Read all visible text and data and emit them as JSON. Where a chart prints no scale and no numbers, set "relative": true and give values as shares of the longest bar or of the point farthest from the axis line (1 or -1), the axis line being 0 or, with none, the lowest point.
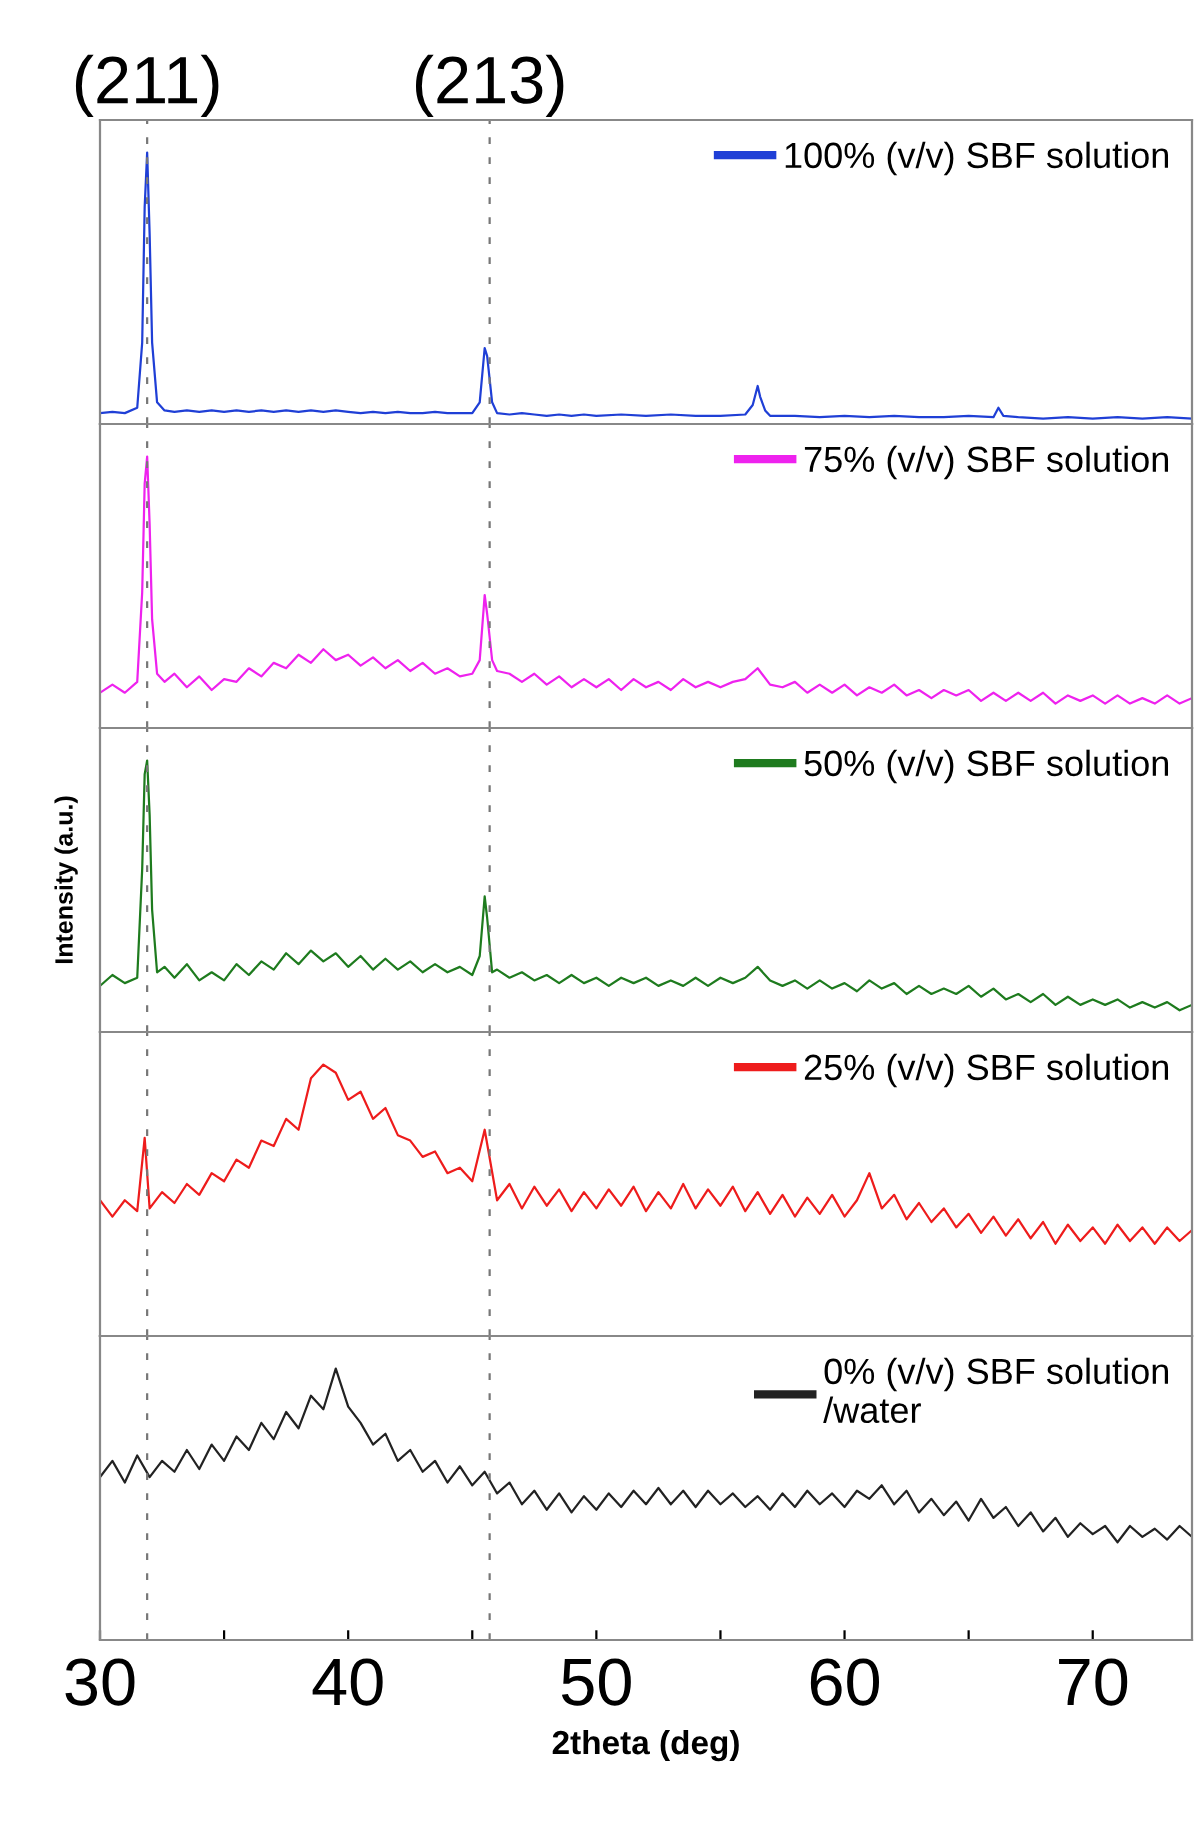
{
  "chart_data": [
    {
      "type": "line",
      "relative": true,
      "xlim": [
        30,
        74
      ],
      "tick_labels": false,
      "legend": "top right",
      "annotations": [
        "(211)",
        "(213)"
      ],
      "ref_lines": [
        {
          "axis": "x",
          "value": 31.9,
          "color": "#777777",
          "line_style": "dashed"
        },
        {
          "axis": "x",
          "value": 45.7,
          "color": "#777777",
          "line_style": "dashed"
        }
      ],
      "x": [
        30,
        30.5,
        31,
        31.5,
        31.7,
        31.8,
        31.9,
        32,
        32.1,
        32.3,
        32.6,
        33,
        33.5,
        34,
        34.5,
        35,
        35.5,
        36,
        36.5,
        37,
        37.5,
        38,
        38.5,
        39,
        39.5,
        40,
        40.5,
        41,
        41.5,
        42,
        42.5,
        43,
        43.5,
        44,
        44.5,
        45,
        45.3,
        45.5,
        45.6,
        45.8,
        46,
        46.5,
        47,
        47.5,
        48,
        48.5,
        49,
        49.5,
        50,
        51,
        52,
        53,
        54,
        55,
        56,
        56.3,
        56.5,
        56.6,
        56.8,
        57,
        58,
        59,
        60,
        61,
        62,
        63,
        64,
        65,
        66,
        66.2,
        66.4,
        67,
        68,
        69,
        70,
        71,
        72,
        73,
        74
      ],
      "series": [
        {
          "name": "100% (v/v) SBF solution",
          "color": "#1f3fd6",
          "values": [
            0.04,
            0.045,
            0.04,
            0.06,
            0.3,
            0.8,
            1,
            0.7,
            0.3,
            0.08,
            0.05,
            0.045,
            0.05,
            0.045,
            0.05,
            0.045,
            0.05,
            0.045,
            0.05,
            0.045,
            0.05,
            0.045,
            0.05,
            0.045,
            0.05,
            0.045,
            0.04,
            0.045,
            0.04,
            0.045,
            0.04,
            0.04,
            0.045,
            0.04,
            0.04,
            0.04,
            0.08,
            0.28,
            0.25,
            0.08,
            0.04,
            0.035,
            0.04,
            0.035,
            0.03,
            0.035,
            0.03,
            0.035,
            0.03,
            0.035,
            0.03,
            0.035,
            0.03,
            0.03,
            0.035,
            0.07,
            0.14,
            0.1,
            0.05,
            0.03,
            0.03,
            0.025,
            0.03,
            0.025,
            0.03,
            0.025,
            0.025,
            0.03,
            0.025,
            0.06,
            0.03,
            0.025,
            0.02,
            0.025,
            0.02,
            0.025,
            0.02,
            0.025,
            0.02
          ]
        }
      ]
    },
    {
      "type": "line",
      "relative": true,
      "xlim": [
        30,
        74
      ],
      "tick_labels": false,
      "legend": "top right",
      "ref_lines": [
        {
          "axis": "x",
          "value": 31.9,
          "color": "#777777",
          "line_style": "dashed"
        },
        {
          "axis": "x",
          "value": 45.7,
          "color": "#777777",
          "line_style": "dashed"
        }
      ],
      "x": [
        30,
        30.5,
        31,
        31.5,
        31.7,
        31.8,
        31.9,
        32,
        32.1,
        32.3,
        32.6,
        33,
        33.5,
        34,
        34.5,
        35,
        35.5,
        36,
        36.5,
        37,
        37.5,
        38,
        38.5,
        39,
        39.5,
        40,
        40.5,
        41,
        41.5,
        42,
        42.5,
        43,
        43.5,
        44,
        44.5,
        45,
        45.3,
        45.5,
        45.6,
        45.8,
        46,
        46.5,
        47,
        47.5,
        48,
        48.5,
        49,
        49.5,
        50,
        50.5,
        51,
        51.5,
        52,
        52.5,
        53,
        53.5,
        54,
        54.5,
        55,
        55.5,
        56,
        56.5,
        57,
        57.5,
        58,
        58.5,
        59,
        59.5,
        60,
        60.5,
        61,
        61.5,
        62,
        62.5,
        63,
        63.5,
        64,
        64.5,
        65,
        65.5,
        66,
        66.5,
        67,
        67.5,
        68,
        68.5,
        69,
        69.5,
        70,
        70.5,
        71,
        71.5,
        72,
        72.5,
        73,
        73.5,
        74
      ],
      "series": [
        {
          "name": "75% (v/v) SBF solution",
          "color": "#ee22ee",
          "values": [
            0.13,
            0.16,
            0.13,
            0.17,
            0.5,
            0.9,
            1,
            0.75,
            0.4,
            0.2,
            0.17,
            0.2,
            0.15,
            0.19,
            0.14,
            0.18,
            0.17,
            0.22,
            0.19,
            0.24,
            0.22,
            0.27,
            0.24,
            0.29,
            0.25,
            0.27,
            0.23,
            0.26,
            0.22,
            0.25,
            0.21,
            0.24,
            0.2,
            0.22,
            0.19,
            0.2,
            0.25,
            0.49,
            0.42,
            0.25,
            0.21,
            0.2,
            0.17,
            0.2,
            0.16,
            0.19,
            0.15,
            0.18,
            0.15,
            0.18,
            0.14,
            0.18,
            0.15,
            0.17,
            0.14,
            0.18,
            0.15,
            0.17,
            0.15,
            0.17,
            0.18,
            0.22,
            0.16,
            0.15,
            0.17,
            0.13,
            0.16,
            0.13,
            0.16,
            0.12,
            0.15,
            0.13,
            0.16,
            0.12,
            0.14,
            0.11,
            0.14,
            0.12,
            0.14,
            0.1,
            0.13,
            0.1,
            0.13,
            0.1,
            0.13,
            0.09,
            0.12,
            0.1,
            0.12,
            0.09,
            0.12,
            0.09,
            0.11,
            0.09,
            0.12,
            0.09,
            0.11
          ]
        }
      ]
    },
    {
      "type": "line",
      "relative": true,
      "xlim": [
        30,
        74
      ],
      "tick_labels": false,
      "legend": "top right",
      "ylabel": "Intensity (a.u.)",
      "ref_lines": [
        {
          "axis": "x",
          "value": 31.9,
          "color": "#777777",
          "line_style": "dashed"
        },
        {
          "axis": "x",
          "value": 45.7,
          "color": "#777777",
          "line_style": "dashed"
        }
      ],
      "x": [
        30,
        30.5,
        31,
        31.5,
        31.7,
        31.8,
        31.9,
        32,
        32.1,
        32.3,
        32.6,
        33,
        33.5,
        34,
        34.5,
        35,
        35.5,
        36,
        36.5,
        37,
        37.5,
        38,
        38.5,
        39,
        39.5,
        40,
        40.5,
        41,
        41.5,
        42,
        42.5,
        43,
        43.5,
        44,
        44.5,
        45,
        45.3,
        45.5,
        45.6,
        45.8,
        46,
        46.5,
        47,
        47.5,
        48,
        48.5,
        49,
        49.5,
        50,
        50.5,
        51,
        51.5,
        52,
        52.5,
        53,
        53.5,
        54,
        54.5,
        55,
        55.5,
        56,
        56.5,
        57,
        57.5,
        58,
        58.5,
        59,
        59.5,
        60,
        60.5,
        61,
        61.5,
        62,
        62.5,
        63,
        63.5,
        64,
        64.5,
        65,
        65.5,
        66,
        66.5,
        67,
        67.5,
        68,
        68.5,
        69,
        69.5,
        70,
        70.5,
        71,
        71.5,
        72,
        72.5,
        73,
        73.5,
        74
      ],
      "series": [
        {
          "name": "50% (v/v) SBF solution",
          "color": "#1e7b1e",
          "values": [
            0.17,
            0.21,
            0.18,
            0.2,
            0.6,
            0.95,
            1,
            0.8,
            0.45,
            0.22,
            0.24,
            0.2,
            0.25,
            0.19,
            0.22,
            0.19,
            0.25,
            0.21,
            0.26,
            0.23,
            0.29,
            0.25,
            0.3,
            0.26,
            0.29,
            0.24,
            0.28,
            0.23,
            0.27,
            0.23,
            0.26,
            0.22,
            0.25,
            0.22,
            0.24,
            0.21,
            0.28,
            0.5,
            0.42,
            0.22,
            0.23,
            0.2,
            0.22,
            0.19,
            0.21,
            0.18,
            0.21,
            0.18,
            0.2,
            0.17,
            0.2,
            0.18,
            0.2,
            0.17,
            0.19,
            0.17,
            0.2,
            0.17,
            0.2,
            0.18,
            0.2,
            0.24,
            0.19,
            0.17,
            0.19,
            0.16,
            0.19,
            0.16,
            0.18,
            0.15,
            0.19,
            0.16,
            0.18,
            0.14,
            0.17,
            0.14,
            0.16,
            0.14,
            0.17,
            0.13,
            0.16,
            0.12,
            0.14,
            0.11,
            0.14,
            0.1,
            0.13,
            0.1,
            0.12,
            0.1,
            0.12,
            0.09,
            0.11,
            0.09,
            0.11,
            0.08,
            0.1
          ]
        }
      ]
    },
    {
      "type": "line",
      "relative": true,
      "xlim": [
        30,
        74
      ],
      "tick_labels": false,
      "legend": "top right",
      "ref_lines": [
        {
          "axis": "x",
          "value": 31.9,
          "color": "#777777",
          "line_style": "dashed"
        },
        {
          "axis": "x",
          "value": 45.7,
          "color": "#777777",
          "line_style": "dashed"
        }
      ],
      "x": [
        30,
        30.5,
        31,
        31.5,
        31.8,
        32,
        32.5,
        33,
        33.5,
        34,
        34.5,
        35,
        35.5,
        36,
        36.5,
        37,
        37.5,
        38,
        38.5,
        39,
        39.5,
        40,
        40.5,
        41,
        41.5,
        42,
        42.5,
        43,
        43.5,
        44,
        44.5,
        45,
        45.5,
        46,
        46.5,
        47,
        47.5,
        48,
        48.5,
        49,
        49.5,
        50,
        50.5,
        51,
        51.5,
        52,
        52.5,
        53,
        53.5,
        54,
        54.5,
        55,
        55.5,
        56,
        56.5,
        57,
        57.5,
        58,
        58.5,
        59,
        59.5,
        60,
        60.5,
        61,
        61.5,
        62,
        62.5,
        63,
        63.5,
        64,
        64.5,
        65,
        65.5,
        66,
        66.5,
        67,
        67.5,
        68,
        68.5,
        69,
        69.5,
        70,
        70.5,
        71,
        71.5,
        72,
        72.5,
        73,
        73.5,
        74
      ],
      "series": [
        {
          "name": "25% (v/v) SBF solution",
          "color": "#ee1c1c",
          "values": [
            0.5,
            0.44,
            0.5,
            0.46,
            0.73,
            0.47,
            0.53,
            0.49,
            0.56,
            0.52,
            0.6,
            0.57,
            0.65,
            0.62,
            0.72,
            0.7,
            0.8,
            0.76,
            0.95,
            1,
            0.97,
            0.87,
            0.9,
            0.8,
            0.84,
            0.74,
            0.72,
            0.66,
            0.68,
            0.6,
            0.62,
            0.57,
            0.76,
            0.5,
            0.56,
            0.47,
            0.55,
            0.48,
            0.54,
            0.46,
            0.53,
            0.47,
            0.54,
            0.48,
            0.55,
            0.46,
            0.53,
            0.47,
            0.56,
            0.47,
            0.54,
            0.48,
            0.55,
            0.46,
            0.53,
            0.45,
            0.52,
            0.44,
            0.51,
            0.45,
            0.52,
            0.44,
            0.5,
            0.6,
            0.47,
            0.52,
            0.43,
            0.49,
            0.42,
            0.47,
            0.4,
            0.45,
            0.38,
            0.44,
            0.37,
            0.43,
            0.36,
            0.42,
            0.34,
            0.41,
            0.35,
            0.4,
            0.34,
            0.41,
            0.35,
            0.4,
            0.34,
            0.4,
            0.35,
            0.39
          ]
        }
      ]
    },
    {
      "type": "line",
      "relative": true,
      "xlim": [
        30,
        74
      ],
      "tick_labels": "x",
      "legend": "top right",
      "xlabel": "2theta (deg)",
      "xticks": [
        30,
        {
          "value": 35,
          "label": null
        },
        40,
        {
          "value": 45,
          "label": null
        },
        50,
        {
          "value": 55,
          "label": null
        },
        60,
        {
          "value": 65,
          "label": null
        },
        70
      ],
      "ref_lines": [
        {
          "axis": "x",
          "value": 31.9,
          "color": "#777777",
          "line_style": "dashed"
        },
        {
          "axis": "x",
          "value": 45.7,
          "color": "#777777",
          "line_style": "dashed"
        }
      ],
      "x": [
        30,
        30.5,
        31,
        31.5,
        32,
        32.5,
        33,
        33.5,
        34,
        34.5,
        35,
        35.5,
        36,
        36.5,
        37,
        37.5,
        38,
        38.5,
        39,
        39.5,
        40,
        40.5,
        41,
        41.5,
        42,
        42.5,
        43,
        43.5,
        44,
        44.5,
        45,
        45.5,
        46,
        46.5,
        47,
        47.5,
        48,
        48.5,
        49,
        49.5,
        50,
        50.5,
        51,
        51.5,
        52,
        52.5,
        53,
        53.5,
        54,
        54.5,
        55,
        55.5,
        56,
        56.5,
        57,
        57.5,
        58,
        58.5,
        59,
        59.5,
        60,
        60.5,
        61,
        61.5,
        62,
        62.5,
        63,
        63.5,
        64,
        64.5,
        65,
        65.5,
        66,
        66.5,
        67,
        67.5,
        68,
        68.5,
        69,
        69.5,
        70,
        70.5,
        71,
        71.5,
        72,
        72.5,
        73,
        73.5,
        74
      ],
      "series": [
        {
          "name": "0% (v/v) SBF solution\n/water",
          "color": "#222222",
          "values": [
            0.6,
            0.66,
            0.58,
            0.68,
            0.6,
            0.66,
            0.62,
            0.7,
            0.63,
            0.72,
            0.66,
            0.75,
            0.7,
            0.8,
            0.74,
            0.84,
            0.78,
            0.9,
            0.85,
            1,
            0.86,
            0.8,
            0.72,
            0.76,
            0.66,
            0.7,
            0.62,
            0.66,
            0.58,
            0.64,
            0.57,
            0.62,
            0.54,
            0.58,
            0.5,
            0.55,
            0.48,
            0.54,
            0.47,
            0.53,
            0.48,
            0.54,
            0.49,
            0.55,
            0.5,
            0.56,
            0.5,
            0.55,
            0.49,
            0.55,
            0.5,
            0.54,
            0.49,
            0.53,
            0.48,
            0.54,
            0.49,
            0.55,
            0.5,
            0.54,
            0.49,
            0.55,
            0.52,
            0.57,
            0.5,
            0.55,
            0.47,
            0.52,
            0.46,
            0.51,
            0.44,
            0.52,
            0.45,
            0.49,
            0.42,
            0.47,
            0.4,
            0.45,
            0.38,
            0.43,
            0.39,
            0.42,
            0.36,
            0.42,
            0.38,
            0.41,
            0.37,
            0.42,
            0.38
          ]
        }
      ]
    }
  ]
}
